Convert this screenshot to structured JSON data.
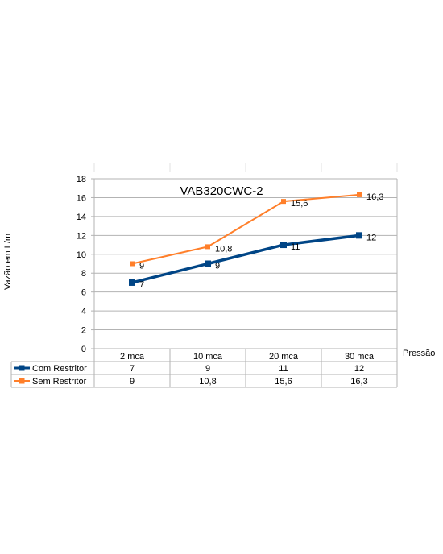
{
  "chart_data": {
    "type": "line",
    "title": "VAB320CWC-2",
    "xlabel": "Pressão",
    "ylabel": "Vazão em L/m",
    "categories": [
      "2 mca",
      "10 mca",
      "20 mca",
      "30 mca"
    ],
    "ylim": [
      0,
      18
    ],
    "yticks": [
      "0",
      "2",
      "4",
      "6",
      "8",
      "10",
      "12",
      "14",
      "16",
      "18"
    ],
    "grid": true,
    "legend_placement": "data-table-left",
    "series": [
      {
        "name": "Com Restritor",
        "values": [
          7,
          9,
          11,
          12
        ],
        "labels": [
          "7",
          "9",
          "11",
          "12"
        ],
        "color": "#004586",
        "marker": "square"
      },
      {
        "name": "Sem Restritor",
        "values": [
          9,
          10.8,
          15.6,
          16.3
        ],
        "labels": [
          "9",
          "10,8",
          "15,6",
          "16,3"
        ],
        "color": "#ff7f2a",
        "marker": "square"
      }
    ]
  }
}
